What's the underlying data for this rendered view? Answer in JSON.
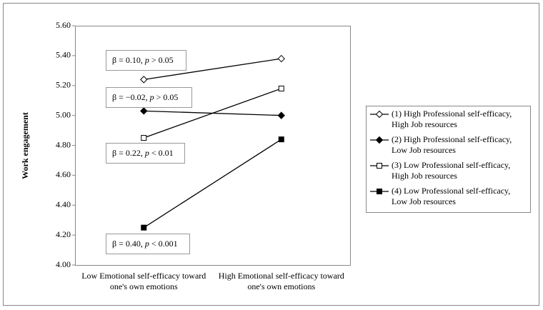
{
  "chart_data": {
    "type": "line",
    "ylabel": "Work engagement",
    "categories": [
      "Low Emotional self-efficacy toward one's own emotions",
      "High Emotional self-efficacy toward one's own emotions"
    ],
    "series": [
      {
        "name": "(1) High Professional self-efficacy, High Job resources",
        "color": "#000000",
        "marker": "diamond",
        "marker_fill": "open",
        "values": [
          5.24,
          5.38
        ]
      },
      {
        "name": "(2) High Professional self-efficacy, Low Job resources",
        "color": "#000000",
        "marker": "diamond",
        "marker_fill": "filled",
        "values": [
          5.03,
          5.0
        ]
      },
      {
        "name": "(3) Low Professional self-efficacy, High Job resources",
        "color": "#000000",
        "marker": "square",
        "marker_fill": "open",
        "values": [
          4.85,
          5.18
        ]
      },
      {
        "name": "(4) Low Professional self-efficacy, Low Job resources",
        "color": "#000000",
        "marker": "square",
        "marker_fill": "filled",
        "values": [
          4.25,
          4.84
        ]
      }
    ],
    "annotations": [
      {
        "parts": [
          "β = 0.10, ",
          "p",
          " > 0.05"
        ]
      },
      {
        "parts": [
          "β = −0.02, ",
          "p",
          " > 0.05"
        ]
      },
      {
        "parts": [
          "β = 0.22, ",
          "p",
          " < 0.01"
        ]
      },
      {
        "parts": [
          "β = 0.40, ",
          "p",
          " < 0.001"
        ]
      }
    ],
    "ylim": [
      4.0,
      5.6
    ],
    "yticks": [
      {
        "value": 4.0,
        "label": "4.00"
      },
      {
        "value": 4.2,
        "label": "4.20"
      },
      {
        "value": 4.4,
        "label": "4.40"
      },
      {
        "value": 4.6,
        "label": "4.60"
      },
      {
        "value": 4.8,
        "label": "4.80"
      },
      {
        "value": 5.0,
        "label": "5.00"
      },
      {
        "value": 5.2,
        "label": "5.20"
      },
      {
        "value": 5.4,
        "label": "5.40"
      },
      {
        "value": 5.6,
        "label": "5.60"
      }
    ],
    "legend": "right"
  }
}
